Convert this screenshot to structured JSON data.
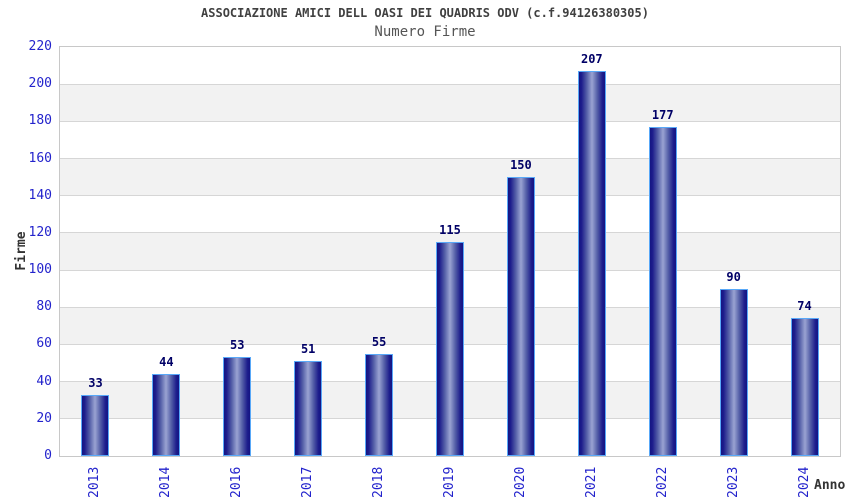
{
  "chart_data": {
    "type": "bar",
    "title": "ASSOCIAZIONE AMICI DELL OASI DEI QUADRIS ODV (c.f.94126380305)",
    "subtitle": "Numero Firme",
    "xlabel": "Anno",
    "ylabel": "Firme",
    "categories": [
      "2013",
      "2014",
      "2016",
      "2017",
      "2018",
      "2019",
      "2020",
      "2021",
      "2022",
      "2023",
      "2024"
    ],
    "values": [
      33,
      44,
      53,
      51,
      55,
      115,
      150,
      207,
      177,
      90,
      74
    ],
    "ylim": [
      0,
      220
    ],
    "ytick_step": 20,
    "yticks": [
      0,
      20,
      40,
      60,
      80,
      100,
      120,
      140,
      160,
      180,
      200,
      220
    ],
    "grid": "horizontal-bands",
    "legend": "none",
    "colors": {
      "bar_dark": "#141483",
      "bar_edge_inner": "#1d1d8c",
      "bar_mid": "#5560a8",
      "bar_light": "#9aa3d2",
      "bar_outline": "#58a8f8",
      "value_label": "#000066",
      "tick_label": "#2323cc",
      "axis_title": "#333333",
      "title_text": "#404040",
      "subtitle_text": "#555555",
      "band": "#f2f2f2",
      "gridline": "#d6d6d6",
      "plot_border": "#c8c8c8",
      "background": "#ffffff"
    }
  }
}
